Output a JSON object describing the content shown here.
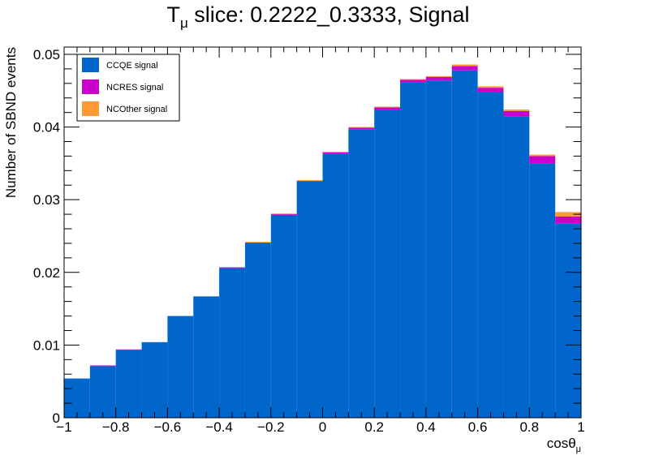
{
  "title": {
    "main": "T",
    "sub": "μ",
    "rest": " slice: 0.2222_0.3333, Signal"
  },
  "colors": {
    "ccqe": "#0066cc",
    "ncres": "#cc00cc",
    "ncother": "#ff9933",
    "frame": "#000000"
  },
  "chart_data": {
    "type": "bar",
    "stacked": true,
    "histogram": true,
    "bin_edges": [
      -1.0,
      -0.9,
      -0.8,
      -0.7,
      -0.6,
      -0.5,
      -0.4,
      -0.3,
      -0.2,
      -0.1,
      0.0,
      0.1,
      0.2,
      0.3,
      0.4,
      0.5,
      0.6,
      0.7,
      0.8,
      0.9,
      1.0
    ],
    "series": [
      {
        "name": "CCQE signal",
        "color": "#0066cc",
        "values": [
          0.0054,
          0.0071,
          0.0093,
          0.0104,
          0.014,
          0.0167,
          0.0206,
          0.024,
          0.0279,
          0.0325,
          0.0363,
          0.0397,
          0.0424,
          0.0461,
          0.0464,
          0.0478,
          0.0448,
          0.0415,
          0.035,
          0.0267
        ]
      },
      {
        "name": "NCRES signal",
        "color": "#cc00cc",
        "values": [
          0.0,
          0.0001,
          0.0001,
          0.0,
          0.0,
          0.0,
          0.0001,
          0.0001,
          0.0001,
          0.0001,
          0.0002,
          0.0002,
          0.0003,
          0.0004,
          0.0005,
          0.0006,
          0.0006,
          0.0007,
          0.001,
          0.001
        ]
      },
      {
        "name": "NCOther signal",
        "color": "#ff9933",
        "values": [
          0.0,
          0.0,
          0.0,
          0.0,
          0.0,
          0.0,
          0.0,
          0.0001,
          0.0001,
          0.0001,
          0.0001,
          0.0001,
          0.0001,
          0.0001,
          0.0001,
          0.0002,
          0.0002,
          0.0002,
          0.0002,
          0.0006
        ]
      }
    ],
    "xlabel_main": "cosθ",
    "xlabel_sub": "μ",
    "ylabel": "Number of SBND events",
    "xlim": [
      -1,
      1
    ],
    "ylim": [
      0,
      0.051
    ],
    "x_ticks": [
      -1,
      -0.8,
      -0.6,
      -0.4,
      -0.2,
      0,
      0.2,
      0.4,
      0.6,
      0.8,
      1
    ],
    "x_tick_labels": [
      "−1",
      "−0.8",
      "−0.6",
      "−0.4",
      "−0.2",
      "0",
      "0.2",
      "0.4",
      "0.6",
      "0.8",
      "1"
    ],
    "y_ticks": [
      0,
      0.01,
      0.02,
      0.03,
      0.04,
      0.05
    ],
    "y_tick_labels": [
      "0",
      "0.01",
      "0.02",
      "0.03",
      "0.04",
      "0.05"
    ],
    "grid": false,
    "legend_position": "top-left"
  }
}
